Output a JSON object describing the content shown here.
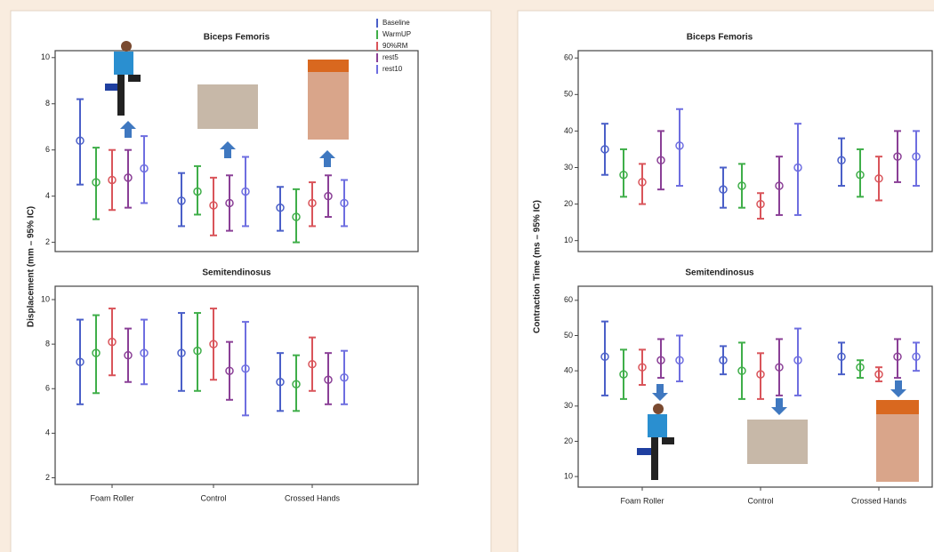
{
  "chart_data": [
    {
      "type": "errorbar",
      "title": "Biceps Femoris",
      "y_label": "Displacement (mm – 95% IC)",
      "ylim": [
        1.6,
        10.3
      ],
      "yticks": [
        2,
        4,
        6,
        8,
        10
      ],
      "legend": "top-right",
      "series": [
        {
          "name": "Baseline",
          "color": "#4a5fc8",
          "values": [
            6.4,
            3.8,
            3.5
          ],
          "low": [
            4.5,
            2.7,
            2.5
          ],
          "high": [
            8.2,
            5.0,
            4.4
          ]
        },
        {
          "name": "WarmUP",
          "color": "#3fae49",
          "values": [
            4.6,
            4.2,
            3.1
          ],
          "low": [
            3.0,
            3.2,
            2.0
          ],
          "high": [
            6.1,
            5.3,
            4.3
          ]
        },
        {
          "name": "90%RM",
          "color": "#d9545a",
          "values": [
            4.7,
            3.6,
            3.7
          ],
          "low": [
            3.4,
            2.3,
            2.7
          ],
          "high": [
            6.0,
            4.8,
            4.6
          ]
        },
        {
          "name": "rest5",
          "color": "#8a3f96",
          "values": [
            4.8,
            3.7,
            4.0
          ],
          "low": [
            3.5,
            2.5,
            3.1
          ],
          "high": [
            6.0,
            4.9,
            4.9
          ]
        },
        {
          "name": "rest10",
          "color": "#6e6ee0",
          "values": [
            5.2,
            4.2,
            3.7
          ],
          "low": [
            3.7,
            2.7,
            2.7
          ],
          "high": [
            6.6,
            5.7,
            4.7
          ]
        }
      ]
    },
    {
      "type": "errorbar",
      "title": "Semitendinosus",
      "categories": [
        "Foam Roller",
        "Control",
        "Crossed Hands"
      ],
      "ylim": [
        1.7,
        10.6
      ],
      "yticks": [
        2,
        4,
        6,
        8,
        10
      ],
      "series": [
        {
          "color": "#4a5fc8",
          "values": [
            7.2,
            7.6,
            6.3
          ],
          "low": [
            5.3,
            5.9,
            5.0
          ],
          "high": [
            9.1,
            9.4,
            7.6
          ]
        },
        {
          "color": "#3fae49",
          "values": [
            7.6,
            7.7,
            6.2
          ],
          "low": [
            5.8,
            5.9,
            5.0
          ],
          "high": [
            9.3,
            9.4,
            7.5
          ]
        },
        {
          "color": "#d9545a",
          "values": [
            8.1,
            8.0,
            7.1
          ],
          "low": [
            6.6,
            6.4,
            5.9
          ],
          "high": [
            9.6,
            9.6,
            8.3
          ]
        },
        {
          "color": "#8a3f96",
          "values": [
            7.5,
            6.8,
            6.4
          ],
          "low": [
            6.3,
            5.5,
            5.3
          ],
          "high": [
            8.7,
            8.1,
            7.6
          ]
        },
        {
          "color": "#6e6ee0",
          "values": [
            7.6,
            6.9,
            6.5
          ],
          "low": [
            6.2,
            4.8,
            5.3
          ],
          "high": [
            9.1,
            9.0,
            7.7
          ]
        }
      ]
    },
    {
      "type": "errorbar",
      "title": "Biceps Femoris",
      "y_label": "Contraction Time (ms – 95% IC)",
      "ylim": [
        7,
        62
      ],
      "yticks": [
        10,
        20,
        30,
        40,
        50,
        60
      ],
      "series": [
        {
          "color": "#4a5fc8",
          "values": [
            35,
            24,
            32
          ],
          "low": [
            28,
            19,
            25
          ],
          "high": [
            42,
            30,
            38
          ]
        },
        {
          "color": "#3fae49",
          "values": [
            28,
            25,
            28
          ],
          "low": [
            22,
            19,
            22
          ],
          "high": [
            35,
            31,
            35
          ]
        },
        {
          "color": "#d9545a",
          "values": [
            26,
            20,
            27
          ],
          "low": [
            20,
            16,
            21
          ],
          "high": [
            31,
            23,
            33
          ]
        },
        {
          "color": "#8a3f96",
          "values": [
            32,
            25,
            33
          ],
          "low": [
            24,
            17,
            26
          ],
          "high": [
            40,
            33,
            40
          ]
        },
        {
          "color": "#6e6ee0",
          "values": [
            36,
            30,
            33
          ],
          "low": [
            25,
            17,
            25
          ],
          "high": [
            46,
            42,
            40
          ]
        }
      ]
    },
    {
      "type": "errorbar",
      "title": "Semitendinosus",
      "categories": [
        "Foam Roller",
        "Control",
        "Crossed Hands"
      ],
      "ylim": [
        7,
        64
      ],
      "yticks": [
        10,
        20,
        30,
        40,
        50,
        60
      ],
      "series": [
        {
          "color": "#4a5fc8",
          "values": [
            44,
            43,
            44
          ],
          "low": [
            33,
            39,
            39
          ],
          "high": [
            54,
            47,
            48
          ]
        },
        {
          "color": "#3fae49",
          "values": [
            39,
            40,
            41
          ],
          "low": [
            32,
            32,
            38
          ],
          "high": [
            46,
            48,
            43
          ]
        },
        {
          "color": "#d9545a",
          "values": [
            41,
            39,
            39
          ],
          "low": [
            36,
            32,
            37
          ],
          "high": [
            46,
            45,
            41
          ]
        },
        {
          "color": "#8a3f96",
          "values": [
            43,
            41,
            44
          ],
          "low": [
            38,
            33,
            38
          ],
          "high": [
            49,
            49,
            49
          ]
        },
        {
          "color": "#6e6ee0",
          "values": [
            43,
            43,
            44
          ],
          "low": [
            37,
            33,
            40
          ],
          "high": [
            50,
            52,
            48
          ]
        }
      ]
    }
  ]
}
